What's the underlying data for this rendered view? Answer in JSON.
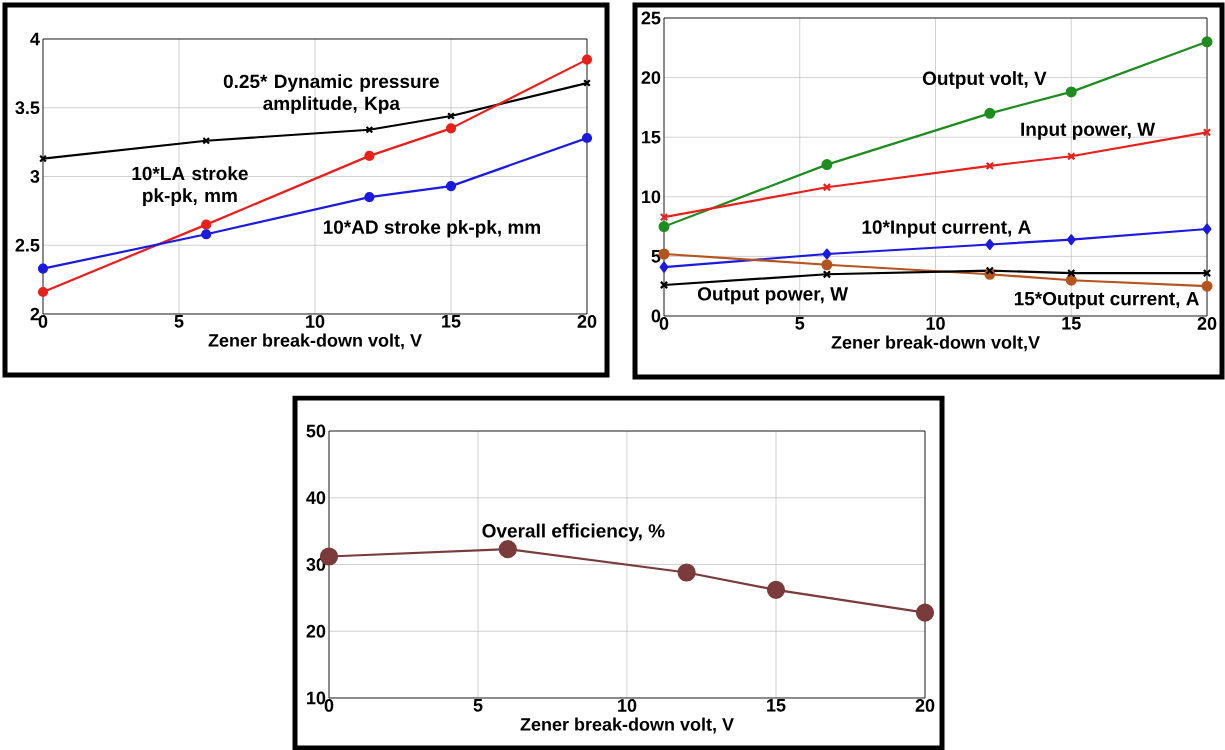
{
  "chart_data": [
    {
      "type": "line",
      "xlabel": "Zener break-down volt, V",
      "x": [
        0,
        6,
        12,
        15,
        20
      ],
      "xlim": [
        0,
        20
      ],
      "xticks": [
        0,
        5,
        10,
        15,
        20
      ],
      "ylim": [
        2,
        4
      ],
      "yticks": [
        2,
        2.5,
        3,
        3.5,
        4
      ],
      "grid": true,
      "series": [
        {
          "color": "#000000",
          "marker": "cross",
          "values": [
            3.13,
            3.26,
            3.34,
            3.44,
            3.68
          ]
        },
        {
          "color": "#e8201c",
          "marker": "circle",
          "values": [
            2.16,
            2.65,
            3.15,
            3.35,
            3.85
          ]
        },
        {
          "color": "#1a1ae0",
          "marker": "circle",
          "values": [
            2.33,
            2.58,
            2.85,
            2.93,
            3.28
          ]
        }
      ],
      "annotations": [
        "0.25* Dynamic pressure amplitude, Kpa",
        "10*LA stroke pk-pk, mm",
        "10*AD stroke pk-pk, mm"
      ]
    },
    {
      "type": "line",
      "xlabel": "Zener break-down volt,V",
      "x": [
        0,
        6,
        12,
        15,
        20
      ],
      "xlim": [
        0,
        20
      ],
      "xticks": [
        0,
        5,
        10,
        15,
        20
      ],
      "ylim": [
        0,
        25
      ],
      "yticks": [
        0,
        5,
        10,
        15,
        20,
        25
      ],
      "grid": true,
      "series": [
        {
          "color": "#1e8c1e",
          "marker": "circle",
          "values": [
            7.5,
            12.7,
            17.0,
            18.8,
            23.0
          ]
        },
        {
          "color": "#e8201c",
          "marker": "cross",
          "values": [
            8.3,
            10.8,
            12.6,
            13.4,
            15.4
          ]
        },
        {
          "color": "#1a1ae0",
          "marker": "diamond",
          "values": [
            4.1,
            5.2,
            6.0,
            6.4,
            7.3
          ]
        },
        {
          "color": "#b5541e",
          "marker": "circle",
          "values": [
            5.2,
            4.3,
            3.5,
            3.0,
            2.5
          ]
        },
        {
          "color": "#000000",
          "marker": "cross",
          "values": [
            2.6,
            3.5,
            3.8,
            3.6,
            3.6
          ]
        }
      ],
      "annotations": [
        "Output volt, V",
        "Input power, W",
        "10*Input current, A",
        "Output power, W",
        "15*Output current, A"
      ]
    },
    {
      "type": "line",
      "xlabel": "Zener break-down volt, V",
      "x": [
        0,
        6,
        12,
        15,
        20
      ],
      "xlim": [
        0,
        20
      ],
      "xticks": [
        0,
        5,
        10,
        15,
        20
      ],
      "ylim": [
        10,
        50
      ],
      "yticks": [
        10,
        20,
        30,
        40,
        50
      ],
      "grid": true,
      "series": [
        {
          "color": "#7b3b3b",
          "marker": "circle",
          "values": [
            31.2,
            32.3,
            28.8,
            26.2,
            22.8
          ]
        }
      ],
      "annotations": [
        "Overall efficiency, %"
      ]
    }
  ]
}
